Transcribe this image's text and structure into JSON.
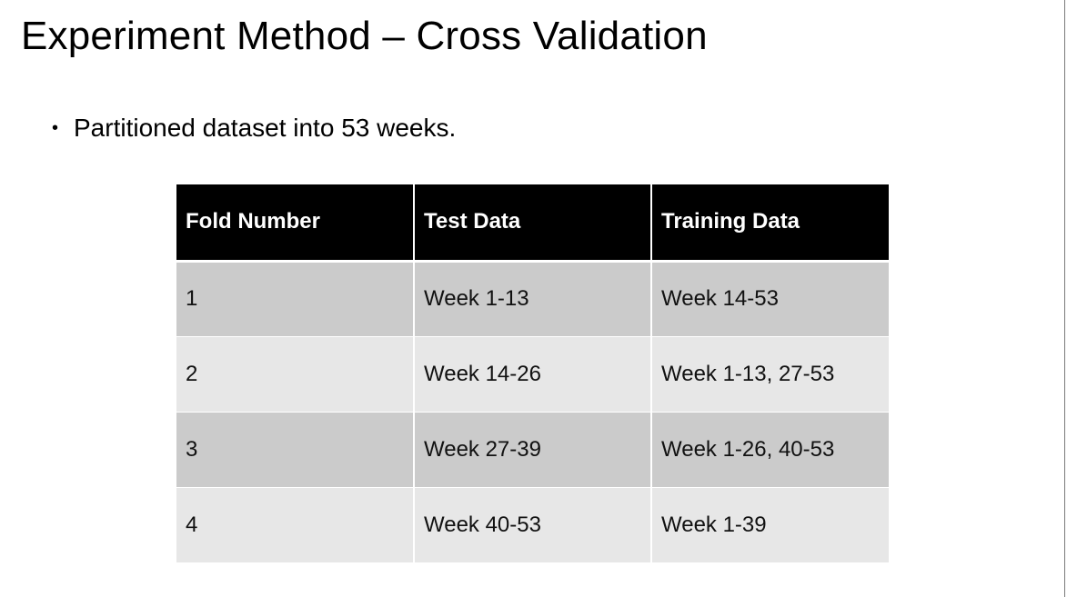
{
  "slide": {
    "title": "Experiment Method – Cross Validation",
    "bullets": [
      {
        "marker": "•",
        "text": "Partitioned dataset into 53 weeks."
      }
    ]
  },
  "table": {
    "headers": [
      "Fold Number",
      "Test Data",
      "Training Data"
    ],
    "rows": [
      [
        "1",
        "Week 1-13",
        "Week 14-53"
      ],
      [
        "2",
        "Week 14-26",
        "Week 1-13, 27-53"
      ],
      [
        "3",
        "Week 27-39",
        "Week 1-26, 40-53"
      ],
      [
        "4",
        "Week 40-53",
        "Week 1-39"
      ]
    ],
    "colors": {
      "header_bg": "#000000",
      "header_text": "#ffffff",
      "row_odd_bg": "#cbcbcb",
      "row_even_bg": "#e7e7e7"
    }
  }
}
